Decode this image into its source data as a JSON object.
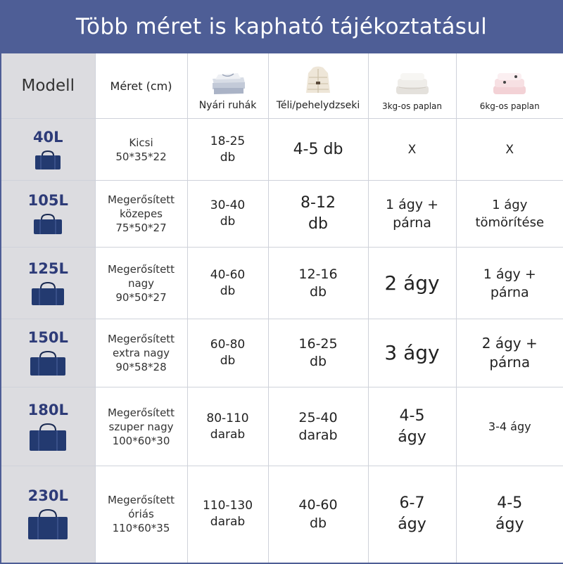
{
  "title": "Több méret is kapható tájékoztatásul",
  "headers": {
    "model": "Modell",
    "size": "Méret (cm)",
    "summer": "Nyári ruhák",
    "winter": "Téli/pehelydzseki",
    "duvet3": "3kg-os paplan",
    "duvet6": "6kg-os paplan"
  },
  "header_icons": {
    "summer": "folded-clothes-icon",
    "winter": "down-jacket-icon",
    "duvet3": "white-duvet-icon",
    "duvet6": "pink-duvet-icon"
  },
  "colors": {
    "banner": "#4e5e96",
    "model_text": "#2d3b78",
    "model_column_bg": "#dcdce0",
    "bag": "#233a70"
  },
  "rows": [
    {
      "model": "40L",
      "bag_icon": "storage-bag-icon",
      "size": [
        "Kicsi",
        "50*35*22"
      ],
      "summer": [
        "18-25",
        "db"
      ],
      "winter": [
        "4-5 db"
      ],
      "duvet3": [
        "X"
      ],
      "duvet6": [
        "X"
      ]
    },
    {
      "model": "105L",
      "bag_icon": "storage-bag-icon",
      "size": [
        "Megerősített",
        "közepes",
        "75*50*27"
      ],
      "summer": [
        "30-40",
        "db"
      ],
      "winter": [
        "8-12",
        "db"
      ],
      "duvet3": [
        "1 ágy +",
        "párna"
      ],
      "duvet6": [
        "1 ágy",
        "tömörítése"
      ]
    },
    {
      "model": "125L",
      "bag_icon": "storage-bag-icon",
      "size": [
        "Megerősített",
        "nagy",
        "90*50*27"
      ],
      "summer": [
        "40-60",
        "db"
      ],
      "winter": [
        "12-16",
        "db"
      ],
      "duvet3": [
        "2 ágy"
      ],
      "duvet6": [
        "1 ágy +",
        "párna"
      ]
    },
    {
      "model": "150L",
      "bag_icon": "storage-bag-icon",
      "size": [
        "Megerősített",
        "extra nagy",
        "90*58*28"
      ],
      "summer": [
        "60-80",
        "db"
      ],
      "winter": [
        "16-25",
        "db"
      ],
      "duvet3": [
        "3 ágy"
      ],
      "duvet6": [
        "2 ágy +",
        "párna"
      ]
    },
    {
      "model": "180L",
      "bag_icon": "storage-bag-icon",
      "size": [
        "Megerősített",
        "szuper nagy",
        "100*60*30"
      ],
      "summer": [
        "80-110",
        "darab"
      ],
      "winter": [
        "25-40",
        "darab"
      ],
      "duvet3": [
        "4-5",
        "ágy"
      ],
      "duvet6": [
        "3-4 ágy"
      ]
    },
    {
      "model": "230L",
      "bag_icon": "storage-bag-icon",
      "size": [
        "Megerősített",
        "óriás",
        "110*60*35"
      ],
      "summer": [
        "110-130",
        "darab"
      ],
      "winter": [
        "40-60",
        "db"
      ],
      "duvet3": [
        "6-7",
        "ágy"
      ],
      "duvet6": [
        "4-5",
        "ágy"
      ]
    }
  ]
}
